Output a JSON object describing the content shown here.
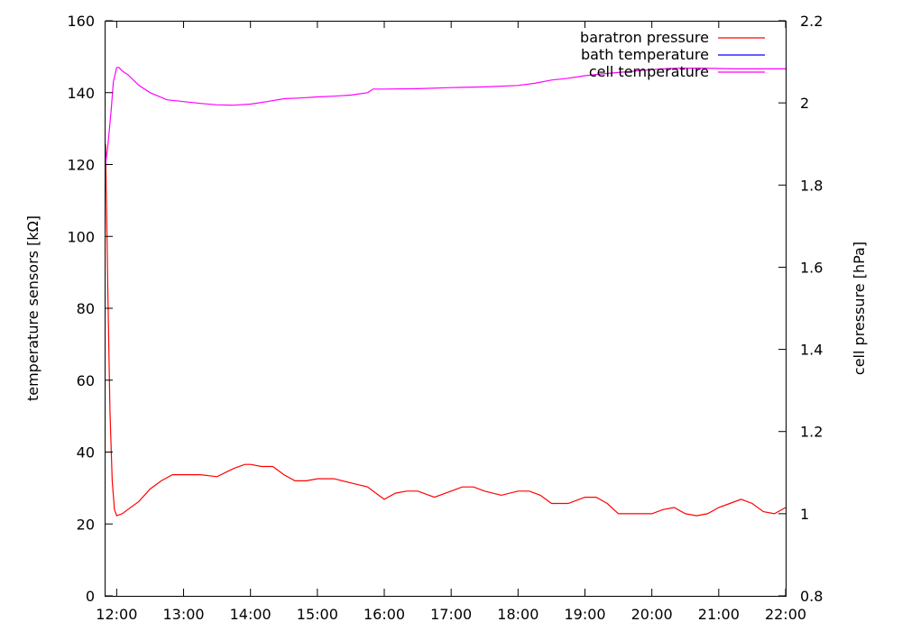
{
  "chart_data": {
    "type": "line",
    "xlabel": "",
    "ylabel": "temperature sensors [kΩ]",
    "y2label": "cell pressure [hPa]",
    "xlim": [
      "11:50",
      "22:00"
    ],
    "ylim": [
      0,
      160
    ],
    "y2lim": [
      0.8,
      2.2
    ],
    "x_ticks": [
      "12:00",
      "13:00",
      "14:00",
      "15:00",
      "16:00",
      "17:00",
      "18:00",
      "19:00",
      "20:00",
      "21:00",
      "22:00"
    ],
    "y_ticks": [
      "0",
      "20",
      "40",
      "60",
      "80",
      "100",
      "120",
      "140",
      "160"
    ],
    "y2_ticks": [
      "0.8",
      "1",
      "1.2",
      "1.4",
      "1.6",
      "1.8",
      "2",
      "2.2"
    ],
    "legend_position": "top-right",
    "grid": false,
    "series": [
      {
        "name": "baratron pressure",
        "axis": "right",
        "color": "#ff0000",
        "x": [
          "11:50",
          "11:52",
          "11:54",
          "11:56",
          "11:58",
          "12:00",
          "12:05",
          "12:10",
          "12:20",
          "12:30",
          "12:40",
          "12:50",
          "13:00",
          "13:15",
          "13:30",
          "13:45",
          "13:55",
          "14:00",
          "14:10",
          "14:20",
          "14:30",
          "14:40",
          "14:50",
          "15:00",
          "15:15",
          "15:30",
          "15:45",
          "15:55",
          "16:00",
          "16:10",
          "16:20",
          "16:30",
          "16:45",
          "17:00",
          "17:10",
          "17:20",
          "17:30",
          "17:45",
          "18:00",
          "18:10",
          "18:20",
          "18:30",
          "18:45",
          "19:00",
          "19:10",
          "19:20",
          "19:30",
          "19:45",
          "20:00",
          "20:10",
          "20:20",
          "20:30",
          "20:40",
          "20:50",
          "21:00",
          "21:10",
          "21:20",
          "21:30",
          "21:40",
          "21:50",
          "22:00"
        ],
        "y": [
          1.9,
          1.55,
          1.25,
          1.08,
          1.01,
          0.995,
          1.0,
          1.01,
          1.03,
          1.06,
          1.08,
          1.095,
          1.095,
          1.095,
          1.09,
          1.11,
          1.12,
          1.12,
          1.115,
          1.115,
          1.095,
          1.08,
          1.08,
          1.085,
          1.085,
          1.075,
          1.065,
          1.045,
          1.035,
          1.05,
          1.055,
          1.055,
          1.04,
          1.055,
          1.065,
          1.065,
          1.055,
          1.045,
          1.055,
          1.055,
          1.045,
          1.025,
          1.025,
          1.04,
          1.04,
          1.025,
          1.0,
          1.0,
          1.0,
          1.01,
          1.015,
          1.0,
          0.995,
          1.0,
          1.015,
          1.025,
          1.035,
          1.025,
          1.005,
          1.0,
          1.015
        ]
      },
      {
        "name": "bath temperature",
        "axis": "left",
        "color": "#0000ff",
        "x": [],
        "y": []
      },
      {
        "name": "cell temperature",
        "axis": "left",
        "color": "#ff00ff",
        "x": [
          "11:50",
          "11:52",
          "11:55",
          "11:57",
          "12:00",
          "12:02",
          "12:05",
          "12:10",
          "12:20",
          "12:30",
          "12:45",
          "13:00",
          "13:15",
          "13:30",
          "13:45",
          "14:00",
          "14:15",
          "14:30",
          "14:45",
          "15:00",
          "15:15",
          "15:30",
          "15:45",
          "15:50",
          "16:00",
          "16:30",
          "17:00",
          "17:30",
          "18:00",
          "18:15",
          "18:30",
          "18:45",
          "19:00",
          "19:15",
          "19:30",
          "19:45",
          "20:00",
          "20:15",
          "20:30",
          "20:45",
          "21:00",
          "21:15",
          "21:30",
          "21:45",
          "22:00"
        ],
        "y": [
          120,
          125,
          135,
          143,
          147,
          147,
          146,
          145,
          142,
          140,
          138,
          137.5,
          137,
          136.6,
          136.5,
          136.8,
          137.5,
          138.3,
          138.5,
          138.8,
          139,
          139.3,
          140,
          141,
          141,
          141.1,
          141.4,
          141.6,
          142,
          142.6,
          143.5,
          144,
          144.7,
          145.2,
          145.6,
          146,
          146.4,
          146.7,
          146.8,
          146.8,
          146.7,
          146.6,
          146.6,
          146.6,
          146.6
        ]
      }
    ]
  }
}
